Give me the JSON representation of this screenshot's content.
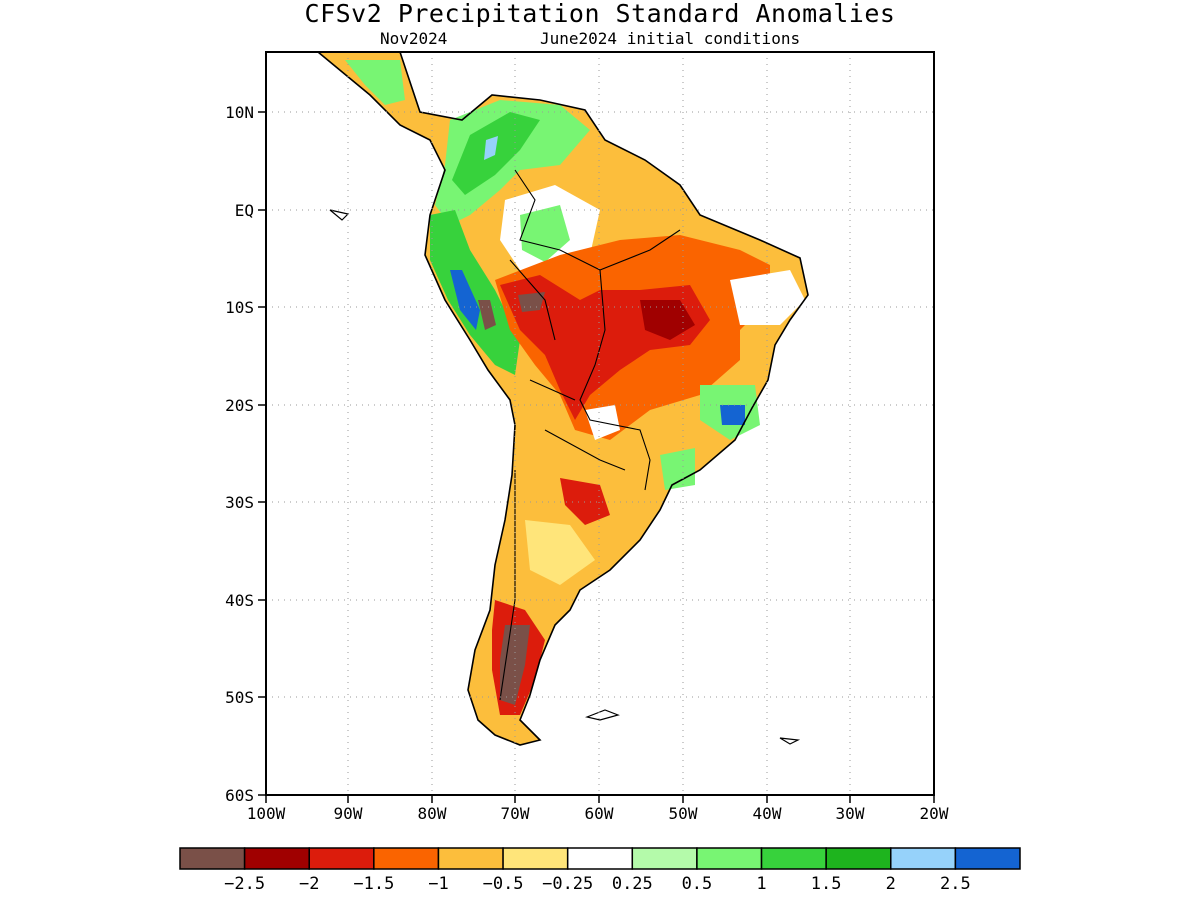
{
  "title": "CFSv2 Precipitation Standard Anomalies",
  "valid_month": "Nov2024",
  "initial_conditions": "June2024 initial conditions",
  "y_ticks": [
    "10N",
    "EQ",
    "10S",
    "20S",
    "30S",
    "40S",
    "50S",
    "60S"
  ],
  "x_ticks": [
    "100W",
    "90W",
    "80W",
    "70W",
    "60W",
    "50W",
    "40W",
    "30W",
    "20W"
  ],
  "colorbar": {
    "colors": [
      "#7a5048",
      "#a00000",
      "#dc1c0c",
      "#fa6400",
      "#fcbe3c",
      "#ffe57a",
      "#ffffff",
      "#b4faaa",
      "#78f573",
      "#37d23c",
      "#1eb41e",
      "#96d2fa",
      "#1464d2"
    ],
    "labels": [
      "−2.5",
      "−2",
      "−1.5",
      "−1",
      "−0.5",
      "−0.25",
      "0.25",
      "0.5",
      "1",
      "1.5",
      "2",
      "2.5"
    ]
  }
}
